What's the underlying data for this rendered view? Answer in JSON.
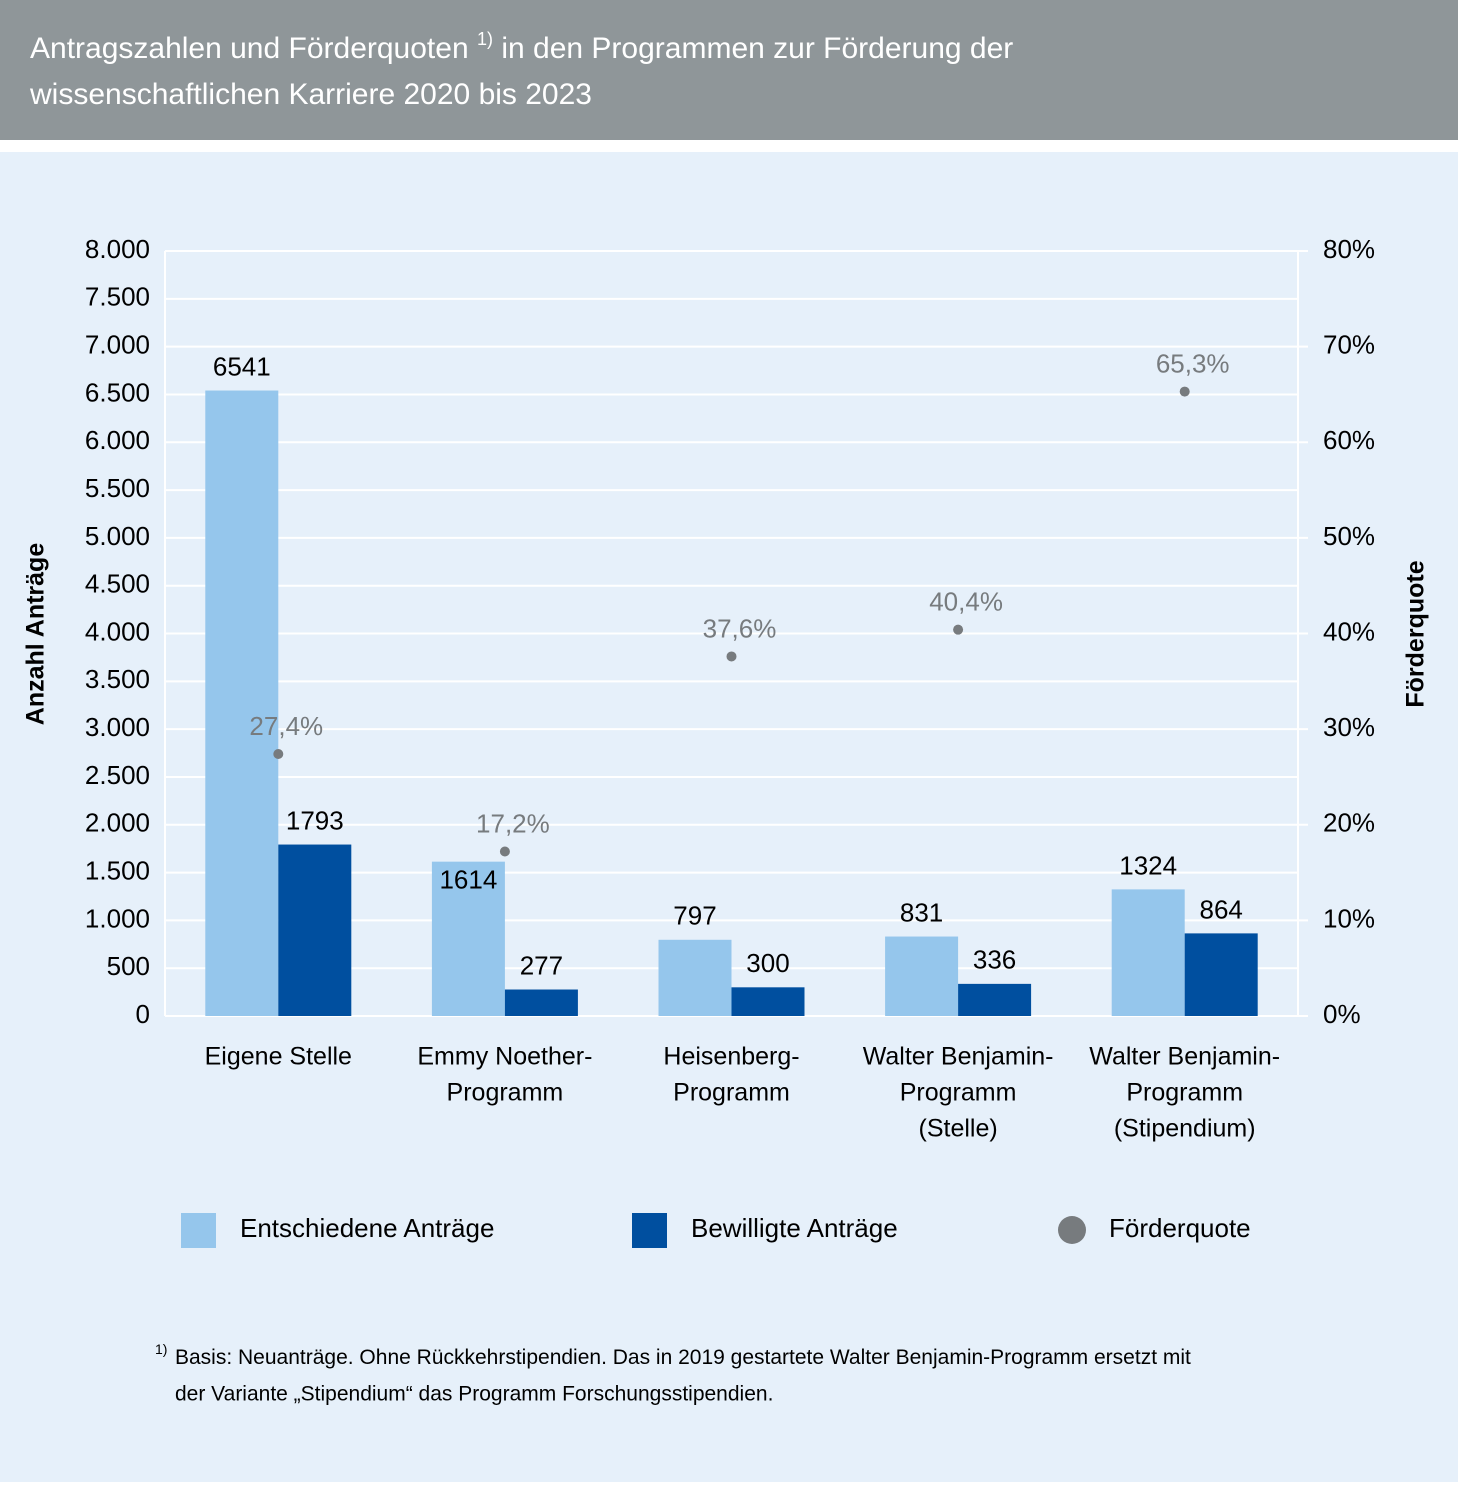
{
  "chart_data": {
    "type": "bar",
    "title": {
      "part_1": "Antragszahlen und Förderquoten",
      "note_ref": "1)",
      "part_2": "in den Programmen zur Förderung der",
      "part_3": "wissenschaftlichen Karriere 2020 bis 2023"
    },
    "y_label": "Anzahl Anträge",
    "y2_label": "Förderquote",
    "categories": [
      [
        "Eigene Stelle"
      ],
      [
        "Emmy Noether-",
        "Programm"
      ],
      [
        "Heisenberg-",
        "Programm"
      ],
      [
        "Walter Benjamin-",
        "Programm",
        "(Stelle)"
      ],
      [
        "Walter Benjamin-",
        "Programm",
        "(Stipendium)"
      ]
    ],
    "series": [
      {
        "name": "Entschiedene Anträge",
        "type": "bar",
        "color": "#95c6ec",
        "values": [
          6541,
          1614,
          797,
          831,
          1324
        ]
      },
      {
        "name": "Bewilligte Anträge",
        "type": "bar",
        "color": "#004f9f",
        "values": [
          1793,
          277,
          300,
          336,
          864
        ]
      },
      {
        "name": "Förderquote",
        "type": "scatter",
        "axis": "y2",
        "color": "#777b7e",
        "values": [
          27.4,
          17.2,
          37.6,
          40.4,
          65.3
        ],
        "value_labels": [
          "27,4%",
          "17,2%",
          "37,6%",
          "40,4%",
          "65,3%"
        ]
      }
    ],
    "ylim": [
      0,
      8000
    ],
    "yticks": [
      0,
      500,
      {
        "value": 1000,
        "label": "1.000"
      },
      {
        "value": 1500,
        "label": "1.500"
      },
      {
        "value": 2000,
        "label": "2.000"
      },
      {
        "value": 2500,
        "label": "2.500"
      },
      {
        "value": 3000,
        "label": "3.000"
      },
      {
        "value": 3500,
        "label": "3.500"
      },
      {
        "value": 4000,
        "label": "4.000"
      },
      {
        "value": 4500,
        "label": "4.500"
      },
      {
        "value": 5000,
        "label": "5.000"
      },
      {
        "value": 5500,
        "label": "5.500"
      },
      {
        "value": 6000,
        "label": "6.000"
      },
      {
        "value": 6500,
        "label": "6.500"
      },
      {
        "value": 7000,
        "label": "7.000"
      },
      {
        "value": 7500,
        "label": "7.500"
      },
      {
        "value": 8000,
        "label": "8.000"
      }
    ],
    "y2lim": [
      0,
      80
    ],
    "y2ticks": [
      {
        "value": 0,
        "label": "0%"
      },
      {
        "value": 10,
        "label": "10%"
      },
      {
        "value": 20,
        "label": "20%"
      },
      {
        "value": 30,
        "label": "30%"
      },
      {
        "value": 40,
        "label": "40%"
      },
      {
        "value": 50,
        "label": "50%"
      },
      {
        "value": 60,
        "label": "60%"
      },
      {
        "value": 70,
        "label": "70%"
      },
      {
        "value": 80,
        "label": "80%"
      }
    ],
    "grid": true,
    "footnote": {
      "note_ref": "1)",
      "lines": [
        "Basis: Neuanträge. Ohne Rückkehrstipendien. Das in 2019 gestartete Walter Benjamin-Programm ersetzt mit",
        "der Variante „Stipendium“ das Programm Forschungsstipendien."
      ]
    }
  }
}
